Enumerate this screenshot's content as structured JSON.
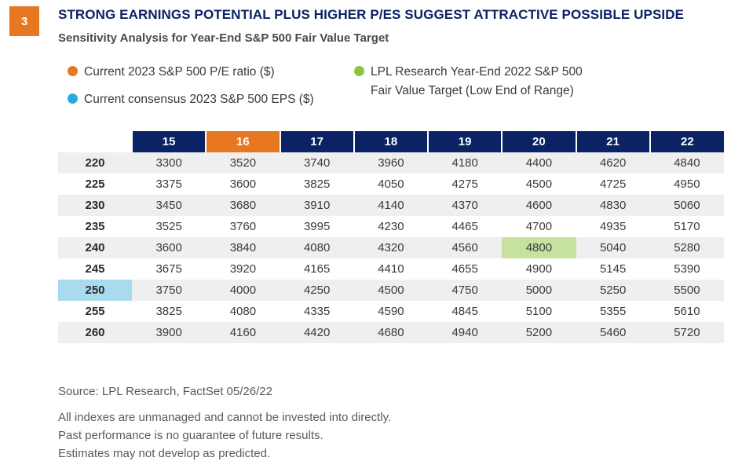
{
  "figure_number": "3",
  "title": "STRONG EARNINGS POTENTIAL PLUS HIGHER P/ES SUGGEST ATTRACTIVE POSSIBLE UPSIDE",
  "subtitle": "Sensitivity Analysis for Year-End S&P 500 Fair Value Target",
  "legend": [
    {
      "label": "Current 2023 S&P 500 P/E ratio ($)",
      "color": "#e87722"
    },
    {
      "label": "Current consensus 2023 S&P 500 EPS ($)",
      "color": "#29abe2"
    },
    {
      "label_line1": "LPL Research Year-End 2022 S&P 500",
      "label_line2": "Fair Value Target (Low End of Range)",
      "color": "#8cc63f"
    }
  ],
  "colors": {
    "header_navy": "#0b2265",
    "highlight_orange": "#e87722",
    "highlight_green": "#c7e29e",
    "highlight_blue": "#a9dbef",
    "row_shade": "#efefef"
  },
  "chart_data": {
    "type": "table",
    "columns": [
      "15",
      "16",
      "17",
      "18",
      "19",
      "20",
      "21",
      "22"
    ],
    "rows": [
      {
        "eps": "220",
        "values": [
          "3300",
          "3520",
          "3740",
          "3960",
          "4180",
          "4400",
          "4620",
          "4840"
        ]
      },
      {
        "eps": "225",
        "values": [
          "3375",
          "3600",
          "3825",
          "4050",
          "4275",
          "4500",
          "4725",
          "4950"
        ]
      },
      {
        "eps": "230",
        "values": [
          "3450",
          "3680",
          "3910",
          "4140",
          "4370",
          "4600",
          "4830",
          "5060"
        ]
      },
      {
        "eps": "235",
        "values": [
          "3525",
          "3760",
          "3995",
          "4230",
          "4465",
          "4700",
          "4935",
          "5170"
        ]
      },
      {
        "eps": "240",
        "values": [
          "3600",
          "3840",
          "4080",
          "4320",
          "4560",
          "4800",
          "5040",
          "5280"
        ]
      },
      {
        "eps": "245",
        "values": [
          "3675",
          "3920",
          "4165",
          "4410",
          "4655",
          "4900",
          "5145",
          "5390"
        ]
      },
      {
        "eps": "250",
        "values": [
          "3750",
          "4000",
          "4250",
          "4500",
          "4750",
          "5000",
          "5250",
          "5500"
        ]
      },
      {
        "eps": "255",
        "values": [
          "3825",
          "4080",
          "4335",
          "4590",
          "4845",
          "5100",
          "5355",
          "5610"
        ]
      },
      {
        "eps": "260",
        "values": [
          "3900",
          "4160",
          "4420",
          "4680",
          "4940",
          "5200",
          "5460",
          "5720"
        ]
      }
    ],
    "highlight_pe_column": "16",
    "highlight_eps_row": "250",
    "highlight_target": {
      "eps": "240",
      "pe": "20",
      "value": "4800"
    }
  },
  "source": "Source: LPL Research, FactSet  05/26/22",
  "disclaimers": [
    "All indexes are unmanaged and cannot be invested into directly.",
    "Past performance is no guarantee of future results.",
    "Estimates may not develop as predicted."
  ]
}
